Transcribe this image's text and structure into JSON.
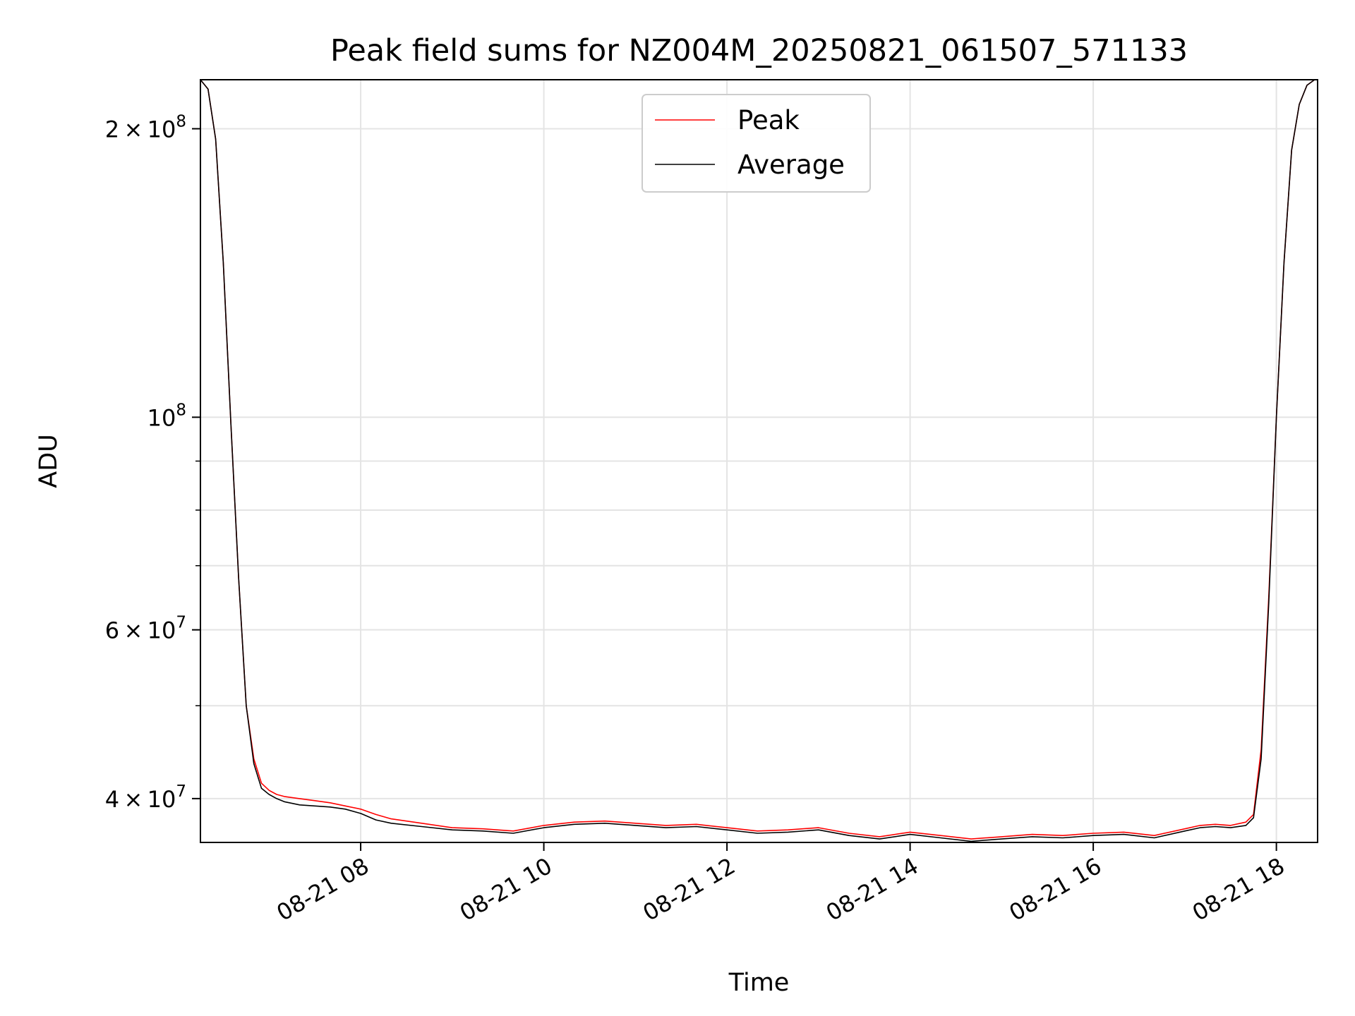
{
  "chart_data": {
    "type": "line",
    "title": "Peak field sums for NZ004M_20250821_061507_571133",
    "xlabel": "Time",
    "ylabel": "ADU",
    "x_scale": "time",
    "y_scale": "log",
    "xlim": [
      "08-21 06:15",
      "08-21 18:27"
    ],
    "ylim": [
      36000000,
      225000000
    ],
    "x_ticks": [
      {
        "value": "08-21 08:00",
        "label": "08-21 08"
      },
      {
        "value": "08-21 10:00",
        "label": "08-21 10"
      },
      {
        "value": "08-21 12:00",
        "label": "08-21 12"
      },
      {
        "value": "08-21 14:00",
        "label": "08-21 14"
      },
      {
        "value": "08-21 16:00",
        "label": "08-21 16"
      },
      {
        "value": "08-21 18:00",
        "label": "08-21 18"
      }
    ],
    "y_ticks": [
      {
        "value": 40000000,
        "mantissa": "4",
        "exp": "7"
      },
      {
        "value": 60000000,
        "mantissa": "6",
        "exp": "7"
      },
      {
        "value": 100000000,
        "mantissa": "",
        "exp": "8"
      },
      {
        "value": 200000000,
        "mantissa": "2",
        "exp": "8"
      }
    ],
    "y_minor_ticks": [
      50000000,
      70000000,
      80000000,
      90000000
    ],
    "grid": true,
    "legend_position": "upper center",
    "series": [
      {
        "name": "Peak",
        "color": "#ff0000",
        "x": [
          "08-21 06:15",
          "08-21 06:20",
          "08-21 06:25",
          "08-21 06:30",
          "08-21 06:35",
          "08-21 06:40",
          "08-21 06:45",
          "08-21 06:50",
          "08-21 06:55",
          "08-21 07:00",
          "08-21 07:05",
          "08-21 07:10",
          "08-21 07:20",
          "08-21 07:30",
          "08-21 07:40",
          "08-21 07:50",
          "08-21 08:00",
          "08-21 08:10",
          "08-21 08:20",
          "08-21 08:40",
          "08-21 09:00",
          "08-21 09:20",
          "08-21 09:40",
          "08-21 10:00",
          "08-21 10:20",
          "08-21 10:40",
          "08-21 11:00",
          "08-21 11:20",
          "08-21 11:40",
          "08-21 12:00",
          "08-21 12:20",
          "08-21 12:40",
          "08-21 13:00",
          "08-21 13:20",
          "08-21 13:40",
          "08-21 14:00",
          "08-21 14:20",
          "08-21 14:40",
          "08-21 15:00",
          "08-21 15:20",
          "08-21 15:40",
          "08-21 16:00",
          "08-21 16:20",
          "08-21 16:40",
          "08-21 17:00",
          "08-21 17:10",
          "08-21 17:20",
          "08-21 17:30",
          "08-21 17:40",
          "08-21 17:45",
          "08-21 17:50",
          "08-21 17:55",
          "08-21 18:00",
          "08-21 18:05",
          "08-21 18:10",
          "08-21 18:15",
          "08-21 18:20",
          "08-21 18:25"
        ],
        "y": [
          225000000,
          220000000,
          195000000,
          145000000,
          98000000,
          68000000,
          50000000,
          44000000,
          41500000,
          40800000,
          40400000,
          40200000,
          40000000,
          39800000,
          39600000,
          39300000,
          39000000,
          38500000,
          38100000,
          37700000,
          37300000,
          37200000,
          37000000,
          37500000,
          37800000,
          37900000,
          37700000,
          37500000,
          37600000,
          37300000,
          37000000,
          37100000,
          37300000,
          36800000,
          36500000,
          36900000,
          36600000,
          36300000,
          36500000,
          36700000,
          36600000,
          36800000,
          36900000,
          36600000,
          37200000,
          37500000,
          37600000,
          37500000,
          37800000,
          38500000,
          45000000,
          65000000,
          100000000,
          145000000,
          190000000,
          212000000,
          222000000,
          225000000
        ]
      },
      {
        "name": "Average",
        "color": "#000000",
        "x": [
          "08-21 06:15",
          "08-21 06:20",
          "08-21 06:25",
          "08-21 06:30",
          "08-21 06:35",
          "08-21 06:40",
          "08-21 06:45",
          "08-21 06:50",
          "08-21 06:55",
          "08-21 07:00",
          "08-21 07:05",
          "08-21 07:10",
          "08-21 07:20",
          "08-21 07:30",
          "08-21 07:40",
          "08-21 07:50",
          "08-21 08:00",
          "08-21 08:10",
          "08-21 08:20",
          "08-21 08:40",
          "08-21 09:00",
          "08-21 09:20",
          "08-21 09:40",
          "08-21 10:00",
          "08-21 10:20",
          "08-21 10:40",
          "08-21 11:00",
          "08-21 11:20",
          "08-21 11:40",
          "08-21 12:00",
          "08-21 12:20",
          "08-21 12:40",
          "08-21 13:00",
          "08-21 13:20",
          "08-21 13:40",
          "08-21 14:00",
          "08-21 14:20",
          "08-21 14:40",
          "08-21 15:00",
          "08-21 15:20",
          "08-21 15:40",
          "08-21 16:00",
          "08-21 16:20",
          "08-21 16:40",
          "08-21 17:00",
          "08-21 17:10",
          "08-21 17:20",
          "08-21 17:30",
          "08-21 17:40",
          "08-21 17:45",
          "08-21 17:50",
          "08-21 17:55",
          "08-21 18:00",
          "08-21 18:05",
          "08-21 18:10",
          "08-21 18:15",
          "08-21 18:20",
          "08-21 18:25"
        ],
        "y": [
          225000000,
          220000000,
          195000000,
          145000000,
          98000000,
          68000000,
          50000000,
          43500000,
          41000000,
          40400000,
          40000000,
          39700000,
          39400000,
          39300000,
          39200000,
          39000000,
          38600000,
          38000000,
          37700000,
          37400000,
          37100000,
          37000000,
          36800000,
          37300000,
          37600000,
          37700000,
          37500000,
          37300000,
          37400000,
          37100000,
          36800000,
          36900000,
          37100000,
          36600000,
          36300000,
          36700000,
          36400000,
          36100000,
          36300000,
          36500000,
          36400000,
          36600000,
          36700000,
          36400000,
          37000000,
          37300000,
          37400000,
          37300000,
          37500000,
          38200000,
          44000000,
          64000000,
          100000000,
          145000000,
          190000000,
          212000000,
          222000000,
          225000000
        ]
      }
    ]
  }
}
